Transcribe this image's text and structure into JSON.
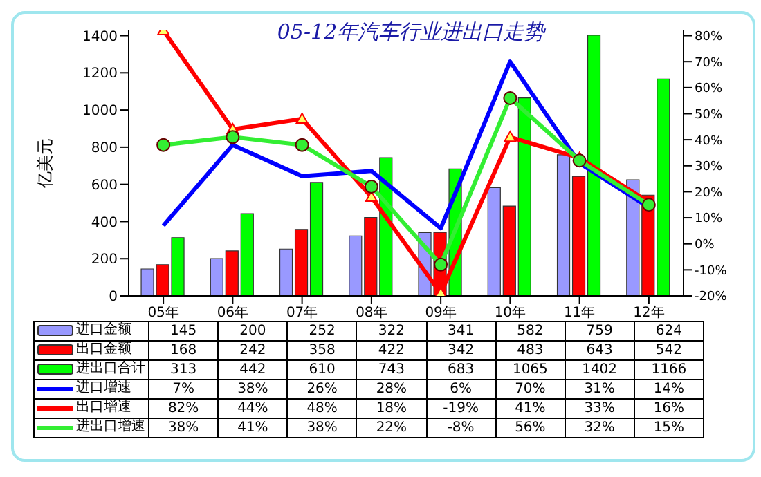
{
  "chart_data": {
    "type": "bar",
    "title": "05-12年汽车行业进出口走势",
    "ylabel": "亿美元",
    "categories": [
      "05年",
      "06年",
      "07年",
      "08年",
      "09年",
      "10年",
      "11年",
      "12年"
    ],
    "ylim": [
      0,
      1428
    ],
    "yticks": [
      0,
      200,
      400,
      600,
      800,
      1000,
      1200,
      1400
    ],
    "y2lim": [
      -20,
      82
    ],
    "y2ticks": [
      {
        "value": -20,
        "label": "-20%"
      },
      {
        "value": -10,
        "label": "-10%"
      },
      {
        "value": 0,
        "label": "0%"
      },
      {
        "value": 10,
        "label": "10%"
      },
      {
        "value": 20,
        "label": "20%"
      },
      {
        "value": 30,
        "label": "30%"
      },
      {
        "value": 40,
        "label": "40%"
      },
      {
        "value": 50,
        "label": "50%"
      },
      {
        "value": 60,
        "label": "60%"
      },
      {
        "value": 70,
        "label": "70%"
      },
      {
        "value": 80,
        "label": "80%"
      }
    ],
    "legend": "bottom",
    "series": [
      {
        "name": "进口金额",
        "color": "#9999ff",
        "values": [
          145,
          200,
          252,
          322,
          341,
          582,
          759,
          624
        ],
        "value_labels": [
          "145",
          "200",
          "252",
          "322",
          "341",
          "582",
          "759",
          "624"
        ]
      },
      {
        "name": "出口金额",
        "color": "#ff0000",
        "values": [
          168,
          242,
          358,
          422,
          342,
          483,
          643,
          542
        ],
        "value_labels": [
          "168",
          "242",
          "358",
          "422",
          "342",
          "483",
          "643",
          "542"
        ]
      },
      {
        "name": "进出口合计",
        "color": "#00ff00",
        "values": [
          313,
          442,
          610,
          743,
          683,
          1065,
          1402,
          1166
        ],
        "value_labels": [
          "313",
          "442",
          "610",
          "743",
          "683",
          "1065",
          "1402",
          "1166"
        ]
      },
      {
        "name": "进口增速",
        "type": "line",
        "axis": "y2",
        "color": "#0000ff",
        "marker": "none",
        "values": [
          7,
          38,
          26,
          28,
          6,
          70,
          31,
          14
        ],
        "value_labels": [
          "7%",
          "38%",
          "26%",
          "28%",
          "6%",
          "70%",
          "31%",
          "14%"
        ]
      },
      {
        "name": "出口增速",
        "type": "line",
        "axis": "y2",
        "color": "#ff0000",
        "marker": "triangle",
        "values": [
          82,
          44,
          48,
          18,
          -19,
          41,
          33,
          16
        ],
        "value_labels": [
          "82%",
          "44%",
          "48%",
          "18%",
          "-19%",
          "41%",
          "33%",
          "16%"
        ]
      },
      {
        "name": "进出口增速",
        "type": "line",
        "axis": "y2",
        "color": "#33ee33",
        "marker": "circle",
        "values": [
          38,
          41,
          38,
          22,
          -8,
          56,
          32,
          15
        ],
        "value_labels": [
          "38%",
          "41%",
          "38%",
          "22%",
          "-8%",
          "56%",
          "32%",
          "15%"
        ]
      }
    ]
  }
}
